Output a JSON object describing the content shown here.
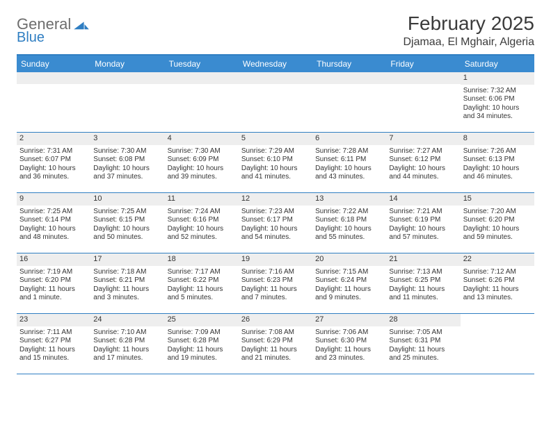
{
  "brand": {
    "name1": "General",
    "name2": "Blue",
    "mark_color": "#2f7ec2"
  },
  "title": "February 2025",
  "location": "Djamaa, El Mghair, Algeria",
  "colors": {
    "header_bg": "#3a8bd0",
    "header_text": "#ffffff",
    "rule": "#2f7ec2",
    "daynum_bg": "#eeeeee",
    "text": "#333333",
    "background": "#ffffff"
  },
  "day_headers": [
    "Sunday",
    "Monday",
    "Tuesday",
    "Wednesday",
    "Thursday",
    "Friday",
    "Saturday"
  ],
  "weeks": [
    [
      {
        "empty": true
      },
      {
        "empty": true
      },
      {
        "empty": true
      },
      {
        "empty": true
      },
      {
        "empty": true
      },
      {
        "empty": true
      },
      {
        "day": "1",
        "sunrise": "Sunrise: 7:32 AM",
        "sunset": "Sunset: 6:06 PM",
        "daylight": "Daylight: 10 hours and 34 minutes."
      }
    ],
    [
      {
        "day": "2",
        "sunrise": "Sunrise: 7:31 AM",
        "sunset": "Sunset: 6:07 PM",
        "daylight": "Daylight: 10 hours and 36 minutes."
      },
      {
        "day": "3",
        "sunrise": "Sunrise: 7:30 AM",
        "sunset": "Sunset: 6:08 PM",
        "daylight": "Daylight: 10 hours and 37 minutes."
      },
      {
        "day": "4",
        "sunrise": "Sunrise: 7:30 AM",
        "sunset": "Sunset: 6:09 PM",
        "daylight": "Daylight: 10 hours and 39 minutes."
      },
      {
        "day": "5",
        "sunrise": "Sunrise: 7:29 AM",
        "sunset": "Sunset: 6:10 PM",
        "daylight": "Daylight: 10 hours and 41 minutes."
      },
      {
        "day": "6",
        "sunrise": "Sunrise: 7:28 AM",
        "sunset": "Sunset: 6:11 PM",
        "daylight": "Daylight: 10 hours and 43 minutes."
      },
      {
        "day": "7",
        "sunrise": "Sunrise: 7:27 AM",
        "sunset": "Sunset: 6:12 PM",
        "daylight": "Daylight: 10 hours and 44 minutes."
      },
      {
        "day": "8",
        "sunrise": "Sunrise: 7:26 AM",
        "sunset": "Sunset: 6:13 PM",
        "daylight": "Daylight: 10 hours and 46 minutes."
      }
    ],
    [
      {
        "day": "9",
        "sunrise": "Sunrise: 7:25 AM",
        "sunset": "Sunset: 6:14 PM",
        "daylight": "Daylight: 10 hours and 48 minutes."
      },
      {
        "day": "10",
        "sunrise": "Sunrise: 7:25 AM",
        "sunset": "Sunset: 6:15 PM",
        "daylight": "Daylight: 10 hours and 50 minutes."
      },
      {
        "day": "11",
        "sunrise": "Sunrise: 7:24 AM",
        "sunset": "Sunset: 6:16 PM",
        "daylight": "Daylight: 10 hours and 52 minutes."
      },
      {
        "day": "12",
        "sunrise": "Sunrise: 7:23 AM",
        "sunset": "Sunset: 6:17 PM",
        "daylight": "Daylight: 10 hours and 54 minutes."
      },
      {
        "day": "13",
        "sunrise": "Sunrise: 7:22 AM",
        "sunset": "Sunset: 6:18 PM",
        "daylight": "Daylight: 10 hours and 55 minutes."
      },
      {
        "day": "14",
        "sunrise": "Sunrise: 7:21 AM",
        "sunset": "Sunset: 6:19 PM",
        "daylight": "Daylight: 10 hours and 57 minutes."
      },
      {
        "day": "15",
        "sunrise": "Sunrise: 7:20 AM",
        "sunset": "Sunset: 6:20 PM",
        "daylight": "Daylight: 10 hours and 59 minutes."
      }
    ],
    [
      {
        "day": "16",
        "sunrise": "Sunrise: 7:19 AM",
        "sunset": "Sunset: 6:20 PM",
        "daylight": "Daylight: 11 hours and 1 minute."
      },
      {
        "day": "17",
        "sunrise": "Sunrise: 7:18 AM",
        "sunset": "Sunset: 6:21 PM",
        "daylight": "Daylight: 11 hours and 3 minutes."
      },
      {
        "day": "18",
        "sunrise": "Sunrise: 7:17 AM",
        "sunset": "Sunset: 6:22 PM",
        "daylight": "Daylight: 11 hours and 5 minutes."
      },
      {
        "day": "19",
        "sunrise": "Sunrise: 7:16 AM",
        "sunset": "Sunset: 6:23 PM",
        "daylight": "Daylight: 11 hours and 7 minutes."
      },
      {
        "day": "20",
        "sunrise": "Sunrise: 7:15 AM",
        "sunset": "Sunset: 6:24 PM",
        "daylight": "Daylight: 11 hours and 9 minutes."
      },
      {
        "day": "21",
        "sunrise": "Sunrise: 7:13 AM",
        "sunset": "Sunset: 6:25 PM",
        "daylight": "Daylight: 11 hours and 11 minutes."
      },
      {
        "day": "22",
        "sunrise": "Sunrise: 7:12 AM",
        "sunset": "Sunset: 6:26 PM",
        "daylight": "Daylight: 11 hours and 13 minutes."
      }
    ],
    [
      {
        "day": "23",
        "sunrise": "Sunrise: 7:11 AM",
        "sunset": "Sunset: 6:27 PM",
        "daylight": "Daylight: 11 hours and 15 minutes."
      },
      {
        "day": "24",
        "sunrise": "Sunrise: 7:10 AM",
        "sunset": "Sunset: 6:28 PM",
        "daylight": "Daylight: 11 hours and 17 minutes."
      },
      {
        "day": "25",
        "sunrise": "Sunrise: 7:09 AM",
        "sunset": "Sunset: 6:28 PM",
        "daylight": "Daylight: 11 hours and 19 minutes."
      },
      {
        "day": "26",
        "sunrise": "Sunrise: 7:08 AM",
        "sunset": "Sunset: 6:29 PM",
        "daylight": "Daylight: 11 hours and 21 minutes."
      },
      {
        "day": "27",
        "sunrise": "Sunrise: 7:06 AM",
        "sunset": "Sunset: 6:30 PM",
        "daylight": "Daylight: 11 hours and 23 minutes."
      },
      {
        "day": "28",
        "sunrise": "Sunrise: 7:05 AM",
        "sunset": "Sunset: 6:31 PM",
        "daylight": "Daylight: 11 hours and 25 minutes."
      },
      {
        "empty": true,
        "nobg": true
      }
    ]
  ]
}
